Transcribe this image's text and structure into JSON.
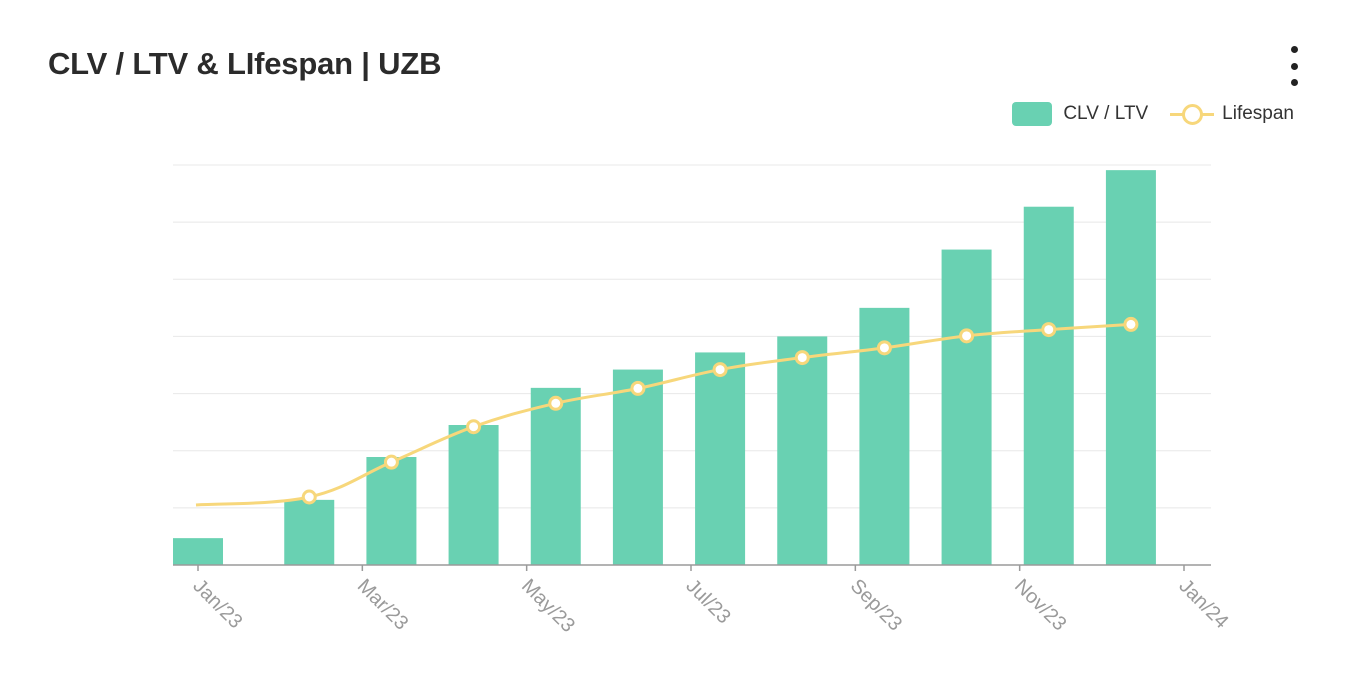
{
  "header": {
    "title": "CLV / LTV & LIfespan | UZB",
    "menu_icon": "more-vertical-icon"
  },
  "colors": {
    "bar": "#69d1b2",
    "line": "#f7d77b",
    "grid": "#e8e8e8",
    "axis": "#9a9a9a",
    "title": "#2b2b2b"
  },
  "chart_data": {
    "type": "bar",
    "title": "CLV / LTV & LIfespan | UZB",
    "xlabel": "",
    "ylabel": "",
    "legend_position": "top-right",
    "grid": true,
    "ylim": [
      0,
      7
    ],
    "x_ticks": [
      "Jan/23",
      "Mar/23",
      "May/23",
      "Jul/23",
      "Sep/23",
      "Nov/23",
      "Jan/24"
    ],
    "categories": [
      "Jan/23",
      "Feb/23",
      "Mar/23",
      "Apr/23",
      "May/23",
      "Jun/23",
      "Jul/23",
      "Aug/23",
      "Sep/23",
      "Oct/23",
      "Nov/23",
      "Dec/23"
    ],
    "series": [
      {
        "name": "CLV / LTV",
        "type": "bar",
        "values": [
          0.47,
          1.14,
          1.89,
          2.45,
          3.1,
          3.42,
          3.72,
          4.0,
          4.5,
          5.52,
          6.27,
          6.91
        ]
      },
      {
        "name": "Lifespan",
        "type": "line",
        "values": [
          1.05,
          1.19,
          1.8,
          2.42,
          2.83,
          3.09,
          3.42,
          3.63,
          3.8,
          4.01,
          4.12,
          4.21
        ]
      }
    ]
  }
}
